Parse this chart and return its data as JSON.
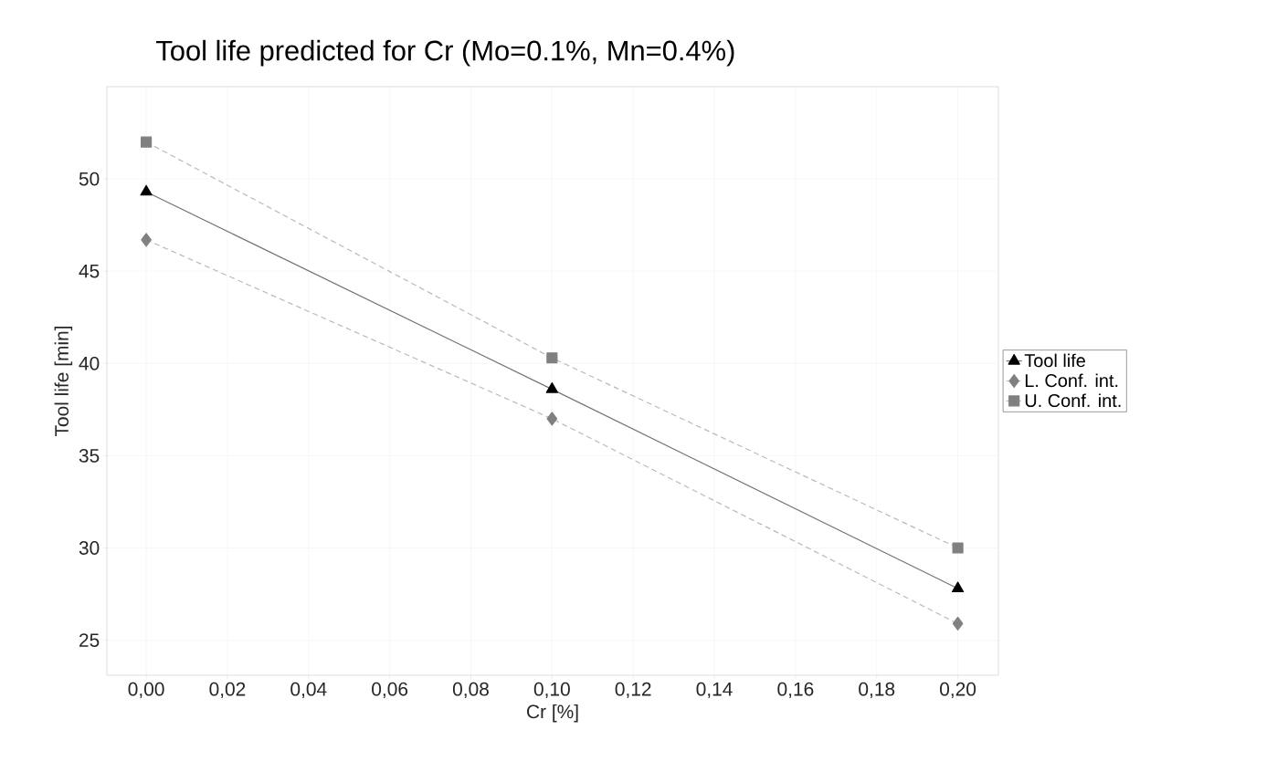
{
  "chart_data": {
    "type": "line",
    "title": "Tool life predicted for Cr (Mo=0.1%, Mn=0.4%)",
    "xlabel": "Cr [%]",
    "ylabel": "Tool life [min]",
    "x": [
      0.0,
      0.1,
      0.2
    ],
    "series": [
      {
        "name": "Tool life",
        "color": "#000000",
        "marker": "triangle",
        "line_style": "solid",
        "values": [
          49.3,
          38.6,
          27.8
        ]
      },
      {
        "name": "L. Conf. int.",
        "color": "#808080",
        "marker": "diamond",
        "line_style": "dashed",
        "values": [
          46.7,
          37.0,
          25.9
        ]
      },
      {
        "name": "U. Conf. int.",
        "color": "#808080",
        "marker": "square",
        "line_style": "dashed",
        "values": [
          52.0,
          40.3,
          30.0
        ]
      }
    ],
    "xlim": [
      -0.0097,
      0.21
    ],
    "ylim": [
      23.1,
      55.0
    ],
    "xticks": [
      {
        "value": 0.0,
        "label": "0,00"
      },
      {
        "value": 0.02,
        "label": "0,02"
      },
      {
        "value": 0.04,
        "label": "0,04"
      },
      {
        "value": 0.06,
        "label": "0,06"
      },
      {
        "value": 0.08,
        "label": "0,08"
      },
      {
        "value": 0.1,
        "label": "0,10"
      },
      {
        "value": 0.12,
        "label": "0,12"
      },
      {
        "value": 0.14,
        "label": "0,14"
      },
      {
        "value": 0.16,
        "label": "0,16"
      },
      {
        "value": 0.18,
        "label": "0,18"
      },
      {
        "value": 0.2,
        "label": "0,20"
      }
    ],
    "yticks": [
      25,
      30,
      35,
      40,
      45,
      50
    ],
    "grid": true,
    "legend": "right"
  }
}
